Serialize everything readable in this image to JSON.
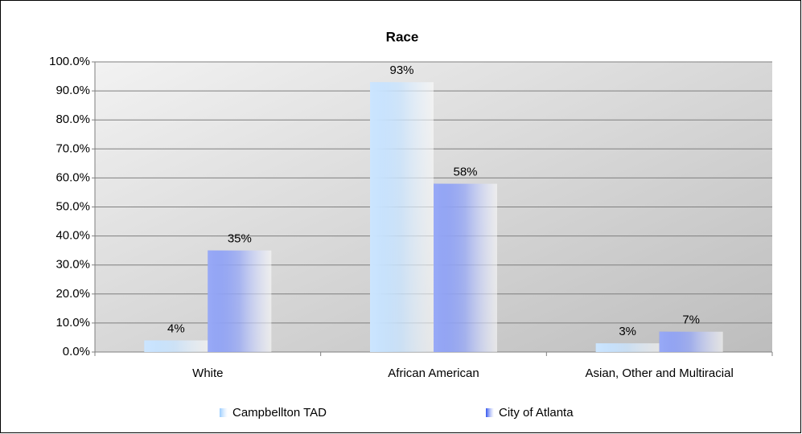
{
  "chart_data": {
    "type": "bar",
    "title": "Race",
    "categories": [
      "White",
      "African American",
      "Asian, Other and Multiracial"
    ],
    "series": [
      {
        "name": "Campbellton TAD",
        "color": "#99ccff",
        "values": [
          4,
          93,
          3
        ],
        "value_labels": [
          "4%",
          "93%",
          "3%"
        ]
      },
      {
        "name": "City of Atlanta",
        "color": "#3355ee",
        "values": [
          35,
          58,
          7
        ],
        "value_labels": [
          "35%",
          "58%",
          "7%"
        ]
      }
    ],
    "ylim": [
      0,
      100
    ],
    "yticks": [
      {
        "value": 0,
        "label": "0.0%"
      },
      {
        "value": 10,
        "label": "10.0%"
      },
      {
        "value": 20,
        "label": "20.0%"
      },
      {
        "value": 30,
        "label": "30.0%"
      },
      {
        "value": 40,
        "label": "40.0%"
      },
      {
        "value": 50,
        "label": "50.0%"
      },
      {
        "value": 60,
        "label": "60.0%"
      },
      {
        "value": 70,
        "label": "70.0%"
      },
      {
        "value": 80,
        "label": "80.0%"
      },
      {
        "value": 90,
        "label": "90.0%"
      },
      {
        "value": 100,
        "label": "100.0%"
      }
    ],
    "grid": true,
    "legend": "bottom"
  }
}
